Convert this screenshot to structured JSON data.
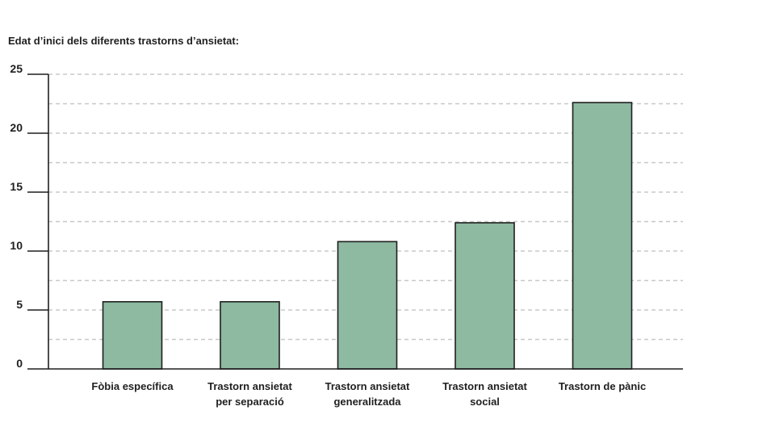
{
  "chart_data": {
    "type": "bar",
    "title": "Edat d’inici dels diferents trastorns d’ansietat:",
    "xlabel": "",
    "ylabel": "",
    "categories": [
      [
        "Fòbia específica"
      ],
      [
        "Trastorn ansietat",
        "per separació"
      ],
      [
        "Trastorn ansietat",
        "generalitzada"
      ],
      [
        "Trastorn ansietat",
        "social"
      ],
      [
        "Trastorn de pànic"
      ]
    ],
    "values": [
      5.7,
      5.7,
      10.8,
      12.4,
      22.6
    ],
    "ylim": [
      0,
      25
    ],
    "yticks": [
      "0",
      "5",
      "10",
      "15",
      "20",
      "25"
    ],
    "grid": true,
    "bar_color": "#8dbaa1",
    "edge_color": "#1f1f1f"
  }
}
